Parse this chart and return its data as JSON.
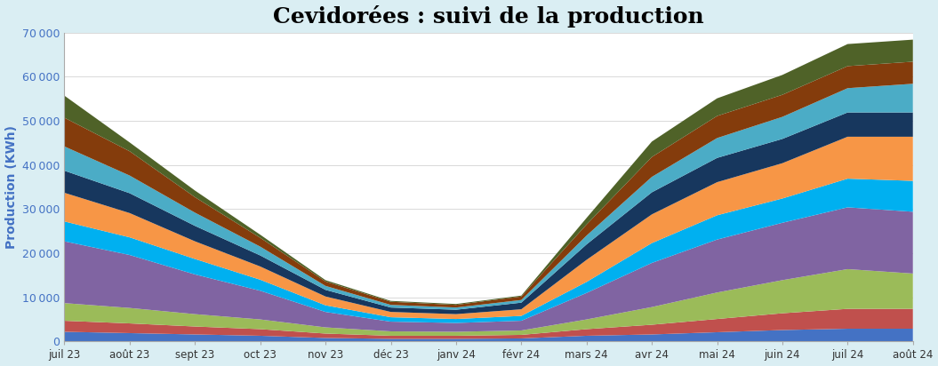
{
  "title": "Cevidorées : suivi de la production",
  "ylabel": "Production (KWh)",
  "xlabels": [
    "juil 23",
    "août 23",
    "sept 23",
    "oct 23",
    "nov 23",
    "déc 23",
    "janv 24",
    "févr 24",
    "mars 24",
    "avr 24",
    "mai 24",
    "juin 24",
    "juil 24",
    "août 24"
  ],
  "ylim": [
    0,
    70000
  ],
  "yticks": [
    0,
    10000,
    20000,
    30000,
    40000,
    50000,
    60000,
    70000
  ],
  "background_color": "#DAEEF3",
  "plot_background": "#FFFFFF",
  "title_fontsize": 18,
  "axis_label_color": "#4472C4",
  "grid_color": "#D9D9D9",
  "colors_bottom_to_top": [
    "#4472C4",
    "#C0504D",
    "#9BBB59",
    "#8064A2",
    "#00B0F0",
    "#F79646",
    "#17375E",
    "#00B0F0",
    "#843C0C",
    "#4F6228"
  ],
  "series_data": [
    [
      2200,
      1900,
      1600,
      1300,
      800,
      600,
      600,
      700,
      1300,
      1600,
      2100,
      2600,
      2900,
      2900
    ],
    [
      2500,
      2200,
      1800,
      1500,
      1000,
      700,
      700,
      800,
      1500,
      2200,
      3000,
      3800,
      4500,
      4500
    ],
    [
      4000,
      3500,
      2800,
      2200,
      1400,
      1000,
      900,
      1000,
      2200,
      4000,
      6000,
      7500,
      9000,
      8000
    ],
    [
      14000,
      12000,
      9000,
      6500,
      3500,
      2200,
      2000,
      2200,
      6000,
      10000,
      12000,
      13000,
      14000,
      14000
    ],
    [
      4500,
      4000,
      3500,
      2500,
      1500,
      1000,
      900,
      1100,
      2500,
      4500,
      5500,
      5500,
      6500,
      7000
    ],
    [
      6500,
      5500,
      4000,
      3000,
      2000,
      1200,
      1100,
      1500,
      5000,
      6500,
      7500,
      8000,
      9500,
      10000
    ],
    [
      5000,
      4500,
      3500,
      2500,
      1500,
      1000,
      1000,
      1500,
      3500,
      5000,
      5500,
      5500,
      5500,
      5500
    ],
    [
      5500,
      4000,
      3000,
      2000,
      900,
      600,
      500,
      600,
      2000,
      3500,
      4500,
      5000,
      5500,
      6500
    ],
    [
      6500,
      5500,
      3500,
      2000,
      1000,
      700,
      600,
      800,
      2500,
      4500,
      5000,
      5000,
      5000,
      5000
    ],
    [
      5000,
      2000,
      1500,
      700,
      300,
      200,
      200,
      200,
      1500,
      3500,
      4000,
      4500,
      5000,
      5000
    ]
  ]
}
